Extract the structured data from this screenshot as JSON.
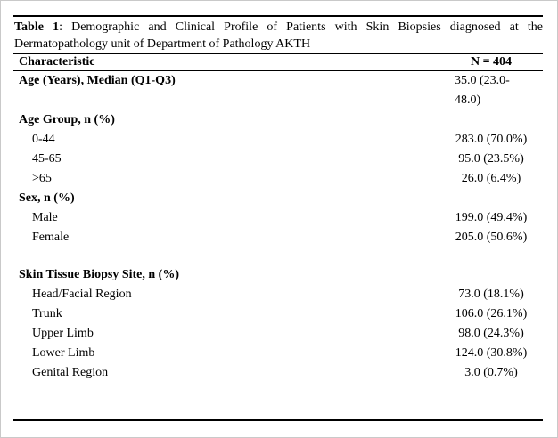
{
  "colors": {
    "background": "#ffffff",
    "text": "#000000",
    "rules": "#000000",
    "frame_border": "#c9c9c9"
  },
  "table": {
    "caption": {
      "label": "Table 1",
      "rest": ": Demographic and Clinical Profile of Patients with Skin Biopsies diagnosed at the Dermatopathology unit of Department of Pathology AKTH"
    },
    "columns": {
      "characteristic": "Characteristic",
      "n": "N = 404"
    },
    "rows": [
      {
        "type": "section",
        "label": "Age (Years), Median (Q1-Q3)",
        "value": "35.0 (23.0-48.0)",
        "value_wrap": true
      },
      {
        "type": "section",
        "label": "Age Group, n (%)",
        "value": ""
      },
      {
        "type": "item",
        "label": "0-44",
        "value": "283.0 (70.0%)"
      },
      {
        "type": "item",
        "label": "45-65",
        "value": "95.0 (23.5%)"
      },
      {
        "type": "item",
        "label": ">65",
        "value": "26.0 (6.4%)"
      },
      {
        "type": "section",
        "label": "Sex, n (%)",
        "value": ""
      },
      {
        "type": "item",
        "label": "Male",
        "value": "199.0 (49.4%)"
      },
      {
        "type": "item",
        "label": "Female",
        "value": "205.0 (50.6%)"
      },
      {
        "type": "spacer"
      },
      {
        "type": "section",
        "label": "Skin Tissue Biopsy Site, n (%)",
        "value": ""
      },
      {
        "type": "item",
        "label": "Head/Facial Region",
        "value": "73.0 (18.1%)"
      },
      {
        "type": "item",
        "label": "Trunk",
        "value": "106.0 (26.1%)"
      },
      {
        "type": "item",
        "label": "Upper Limb",
        "value": "98.0 (24.3%)"
      },
      {
        "type": "item",
        "label": "Lower Limb",
        "value": "124.0 (30.8%)"
      },
      {
        "type": "item",
        "label": "Genital Region",
        "value": "3.0 (0.7%)"
      }
    ]
  }
}
